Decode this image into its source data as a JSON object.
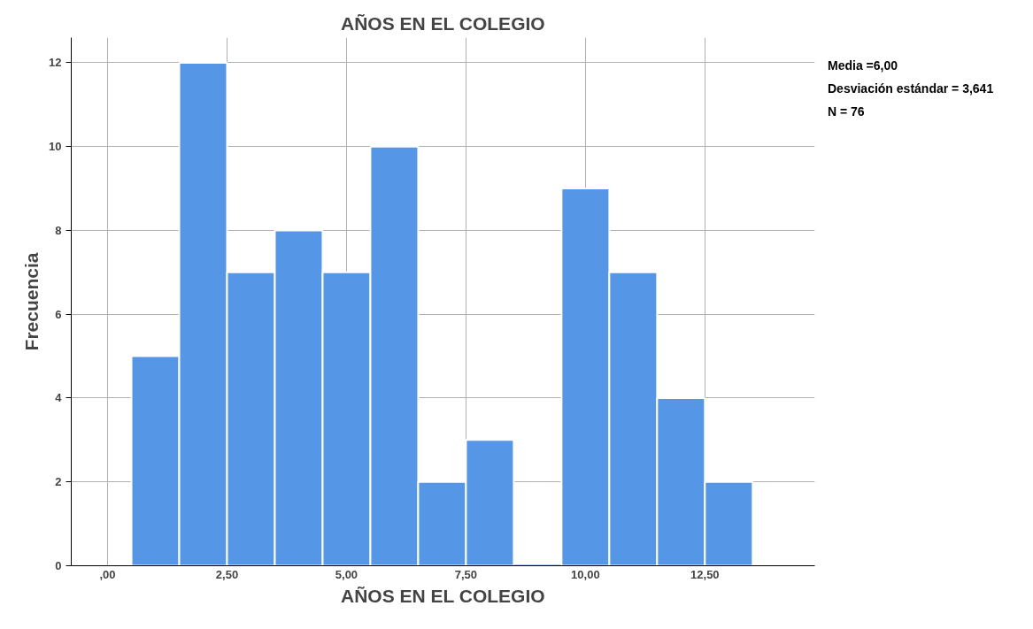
{
  "chart_data": {
    "type": "histogram",
    "title": "AÑOS EN EL COLEGIO",
    "xlabel": "AÑOS EN EL COLEGIO",
    "ylabel": "Frecuencia",
    "bins": [
      0.5,
      1.5,
      2.5,
      3.5,
      4.5,
      5.5,
      6.5,
      7.5,
      8.5,
      9.5,
      10.5,
      11.5,
      12.5,
      13.5
    ],
    "values": [
      5,
      12,
      7,
      8,
      7,
      10,
      2,
      3,
      0,
      9,
      7,
      4,
      2
    ],
    "color": "#5596e6",
    "xlim": [
      -0.76,
      14.8
    ],
    "ylim": [
      0,
      12.6
    ],
    "xticks": [
      {
        "value": 0,
        "label": ",00"
      },
      {
        "value": 2.5,
        "label": "2,50"
      },
      {
        "value": 5,
        "label": "5,00"
      },
      {
        "value": 7.5,
        "label": "7,50"
      },
      {
        "value": 10,
        "label": "10,00"
      },
      {
        "value": 12.5,
        "label": "12,50"
      }
    ],
    "yticks": [
      0,
      2,
      4,
      6,
      8,
      10,
      12
    ],
    "grid": true,
    "annotations": [
      "Media =6,00",
      "Desviación estándar = 3,641",
      "N = 76"
    ]
  }
}
